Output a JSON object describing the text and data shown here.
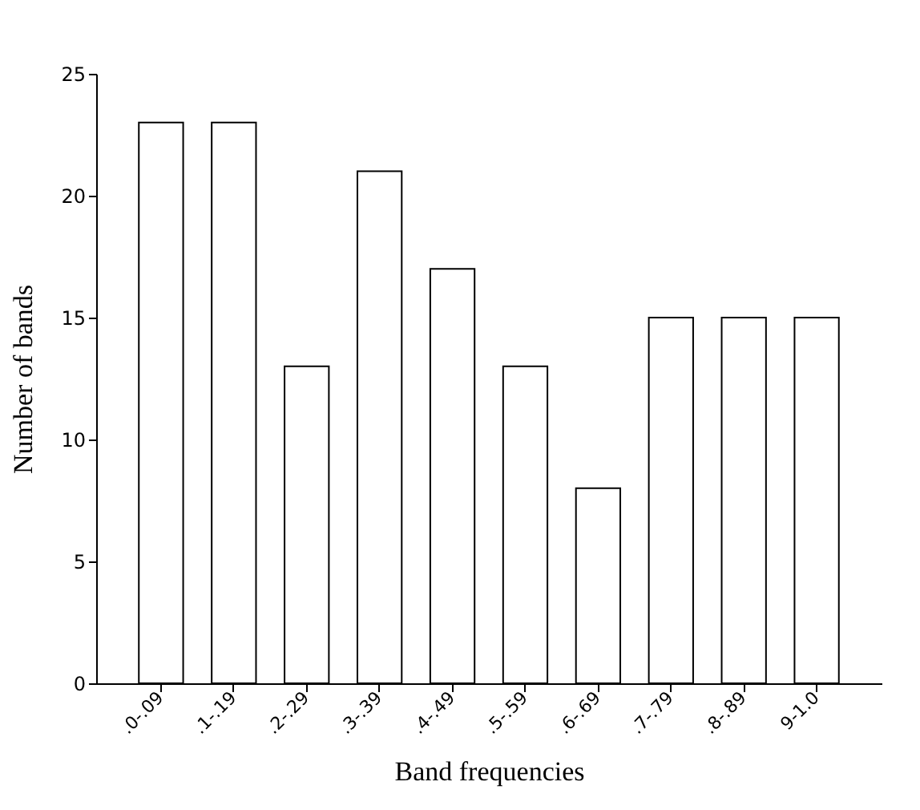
{
  "chart_data": {
    "type": "bar",
    "xlabel": "Band frequencies",
    "ylabel": "Number of bands",
    "categories": [
      ".0-.09",
      ".1-.19",
      ".2-.29",
      ".3-.39",
      ".4-.49",
      ".5-.59",
      ".6-.69",
      ".7-.79",
      ".8-.89",
      "9-1.0"
    ],
    "values": [
      23,
      23,
      13,
      21,
      17,
      13,
      8,
      15,
      15,
      15
    ],
    "color": "#ffffff",
    "ylim": [
      0,
      25
    ],
    "yticks": [
      0,
      5,
      10,
      15,
      20,
      25
    ],
    "grid": false
  }
}
